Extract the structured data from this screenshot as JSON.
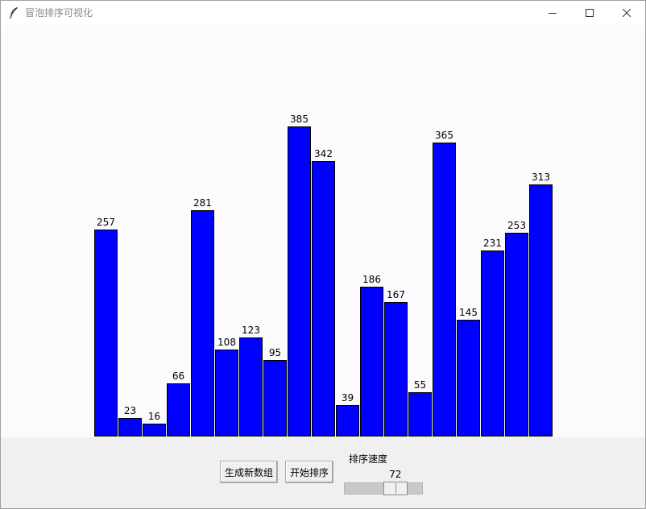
{
  "window": {
    "title": "冒泡排序可视化",
    "icon": "feather-icon",
    "controls": [
      "minimize-icon",
      "maximize-icon",
      "close-icon"
    ]
  },
  "colors": {
    "bar_fill": "#0000ff",
    "bar_outline": "#000000",
    "canvas_bg": "#fbfbfe",
    "window_bg": "#f0f0f0"
  },
  "chart_data": {
    "type": "bar",
    "values": [
      257,
      23,
      16,
      66,
      281,
      108,
      123,
      95,
      385,
      342,
      39,
      186,
      167,
      55,
      365,
      145,
      231,
      253,
      313
    ]
  },
  "controls": {
    "generate_label": "生成新数组",
    "sort_label": "开始排序",
    "speed_label": "排序速度",
    "speed_value": "72"
  }
}
